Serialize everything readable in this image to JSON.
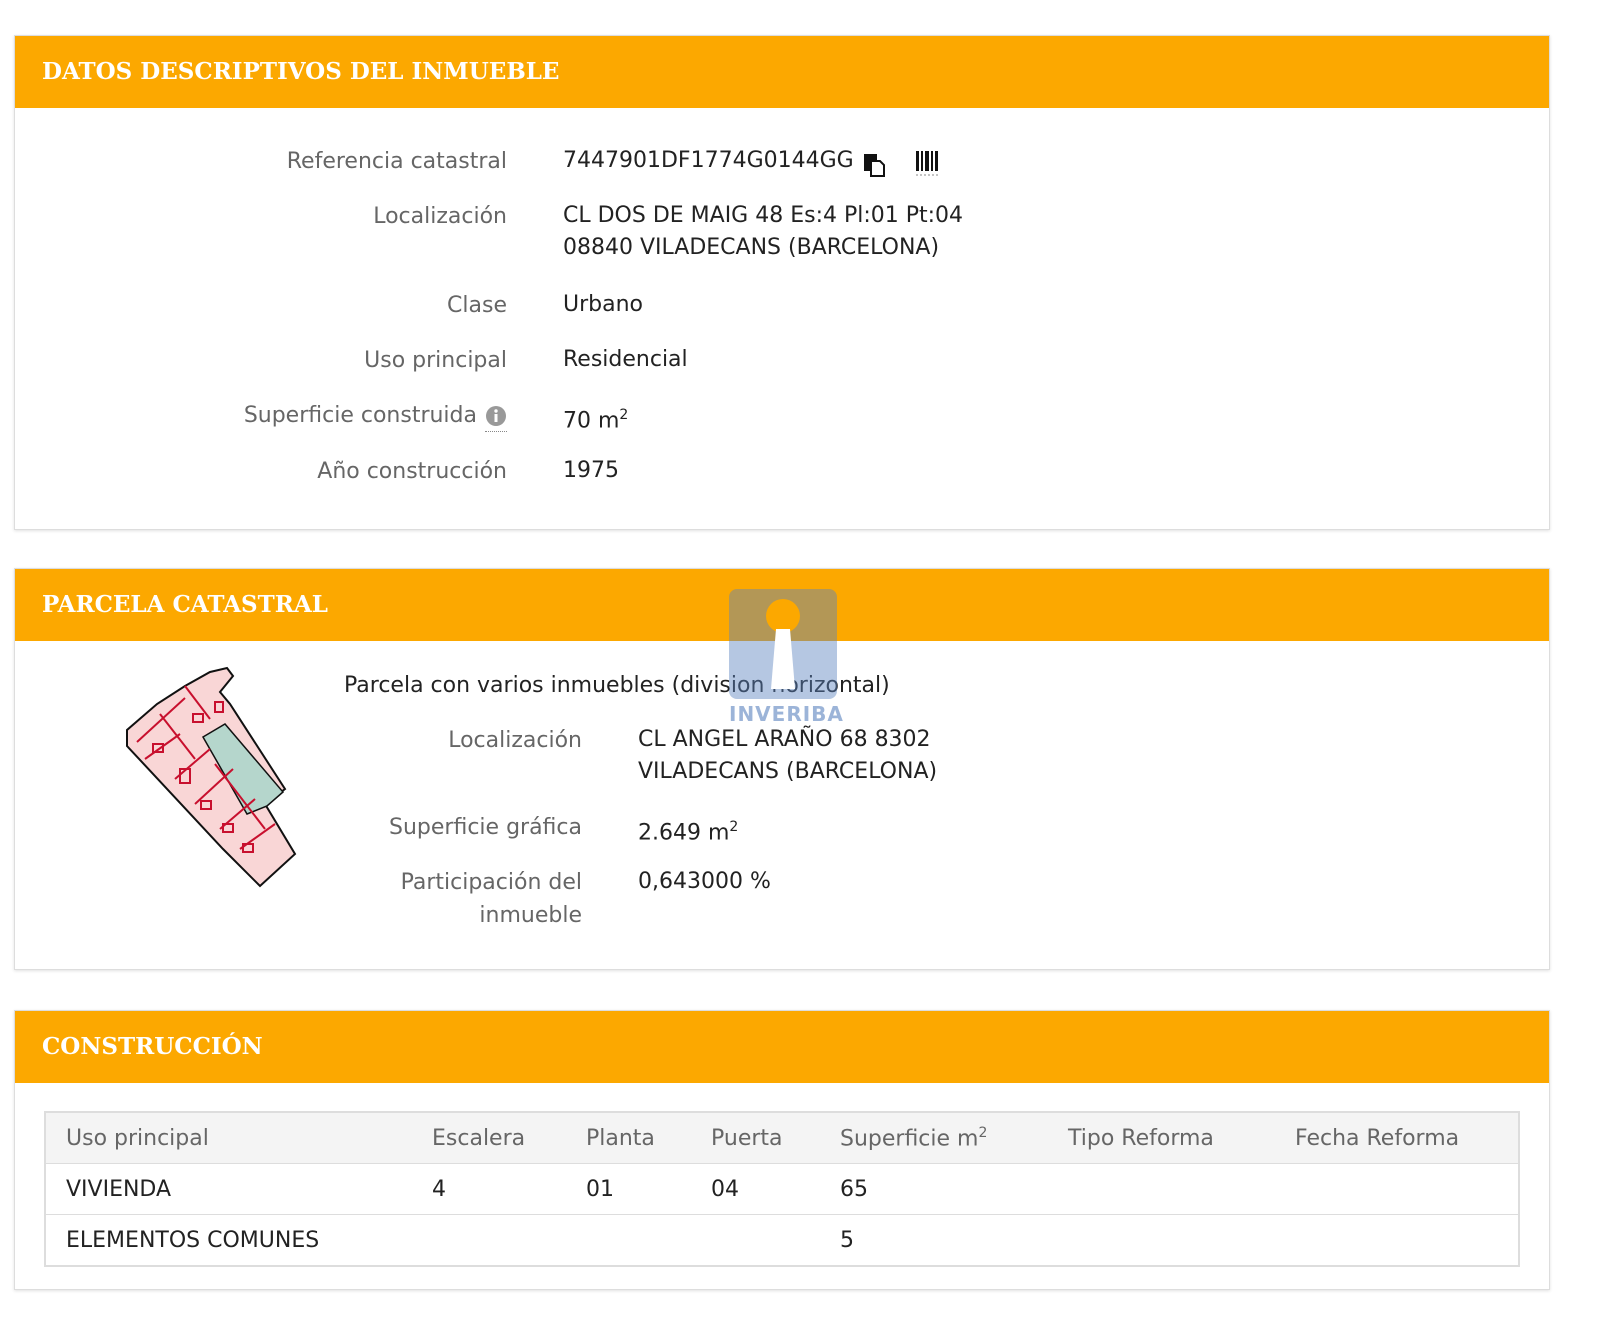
{
  "datos": {
    "title": "DATOS DESCRIPTIVOS DEL INMUEBLE",
    "ref_label": "Referencia catastral",
    "ref_value": "7447901DF1774G0144GG",
    "ref_icons": [
      "copy-icon",
      "barcode-icon"
    ],
    "loc_label": "Localización",
    "loc_line1": "CL DOS DE MAIG 48 Es:4 Pl:01 Pt:04",
    "loc_line2": "08840 VILADECANS (BARCELONA)",
    "clase_label": "Clase",
    "clase_value": "Urbano",
    "uso_label": "Uso principal",
    "uso_value": "Residencial",
    "sup_label": "Superficie construida",
    "sup_value": "70 m",
    "sup_exp": "2",
    "anio_label": "Año construcción",
    "anio_value": "1975"
  },
  "parcela": {
    "title": "PARCELA CATASTRAL",
    "subtitle": "Parcela con varios inmuebles (division horizontal)",
    "loc_label": "Localización",
    "loc_line1": "CL ANGEL ARAÑO 68 8302",
    "loc_line2": "VILADECANS (BARCELONA)",
    "sup_label": "Superficie gráfica",
    "sup_value": "2.649 m",
    "sup_exp": "2",
    "part_label1": "Participación del",
    "part_label2": "inmueble",
    "part_value": "0,643000 %"
  },
  "construccion": {
    "title": "CONSTRUCCIÓN",
    "headers": [
      "Uso principal",
      "Escalera",
      "Planta",
      "Puerta",
      "Superficie m",
      "Tipo Reforma",
      "Fecha Reforma"
    ],
    "sup_exp": "2",
    "rows": [
      [
        "VIVIENDA",
        "4",
        "01",
        "04",
        "65",
        "",
        ""
      ],
      [
        "ELEMENTOS COMUNES",
        "",
        "",
        "",
        "5",
        "",
        ""
      ]
    ]
  },
  "watermark": {
    "text": "INVERIBA"
  },
  "colors": {
    "header": "#fca800",
    "parcel_fill": "#f9d6d6",
    "parcel_line": "#c8102e",
    "patio": "#b5d6cc"
  }
}
